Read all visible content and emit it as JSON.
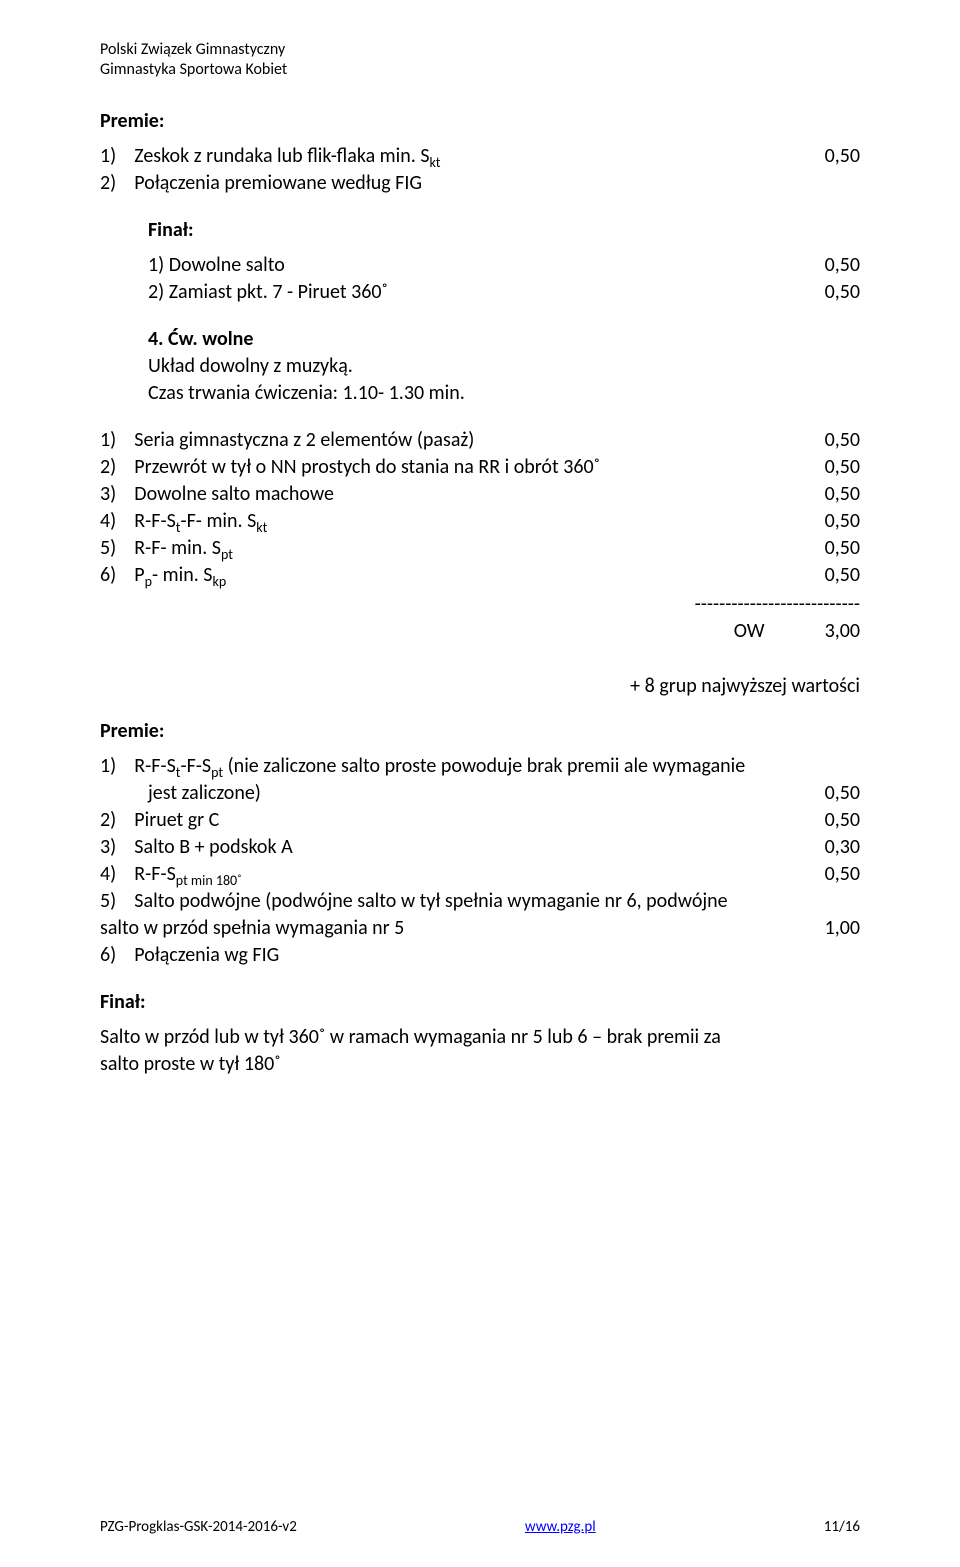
{
  "header": {
    "line1": "Polski Związek Gimnastyczny",
    "line2": "Gimnastyka Sportowa Kobiet"
  },
  "premie1": {
    "label": "Premie:",
    "items": [
      {
        "num": "1)",
        "text": "Zeskok z rundaka lub flik-flaka min. S",
        "sub": "kt",
        "val": "0,50"
      },
      {
        "num": "2)",
        "text": "Połączenia premiowane według FIG",
        "val": ""
      }
    ]
  },
  "final1": {
    "label": "Finał:",
    "items": [
      {
        "num": "1)",
        "text": "Dowolne salto",
        "val": "0,50"
      },
      {
        "num": "2)",
        "text": "Zamiast pkt. 7 - Piruet 360˚",
        "val": "0,50"
      }
    ]
  },
  "cw": {
    "num": "4.",
    "title": "Ćw. wolne",
    "line1": "Układ dowolny z muzyką.",
    "line2": "Czas trwania ćwiczenia: 1.10- 1.30 min."
  },
  "mainlist": {
    "items": [
      {
        "num": "1)",
        "text": "Seria gimnastyczna z 2 elementów (pasaż)",
        "val": "0,50"
      },
      {
        "num": "2)",
        "text": "Przewrót w tył o NN prostych do stania na RR i obrót 360˚",
        "val": "0,50"
      },
      {
        "num": "3)",
        "text": "Dowolne salto machowe",
        "val": "0,50"
      },
      {
        "num": "4)",
        "pre": "R-F-S",
        "sub1": "t",
        "mid": "-F- min. S",
        "sub2": "kt",
        "val": "0,50"
      },
      {
        "num": "5)",
        "pre": "R-F- min. S",
        "sub1": "pt",
        "val": "0,50"
      },
      {
        "num": "6)",
        "pre": "P",
        "sub1": "p",
        "mid": "- min. S",
        "sub2": "kp",
        "val": "0,50"
      }
    ],
    "dashes": "---------------------------",
    "ow_label": "OW",
    "ow_val": "3,00"
  },
  "plus_note": "+ 8 grup najwyższej wartości",
  "premie2": {
    "label": "Premie:",
    "items": [
      {
        "num": "1)",
        "pre": "R-F-S",
        "sub1": "t",
        "mid": "-F-S",
        "sub2": "pt",
        "tail": " (nie zaliczone salto proste powoduje brak premii ale wymaganie",
        "cont": "jest zaliczone)",
        "val": "0,50"
      },
      {
        "num": "2)",
        "text": "Piruet gr C",
        "val": "0,50"
      },
      {
        "num": "3)",
        "text": "Salto B + podskok A",
        "val": "0,30"
      },
      {
        "num": "4)",
        "pre": "R-F-S",
        "sub1": "pt min 180˚",
        "val": "0,50"
      },
      {
        "num": "5)",
        "text": "Salto podwójne (podwójne salto w tył spełnia wymaganie nr 6, podwójne",
        "val": ""
      }
    ],
    "cont_line": {
      "text": "salto w przód spełnia wymagania nr 5",
      "val": "1,00"
    },
    "last": {
      "num": "6)",
      "text": "Połączenia wg FIG"
    }
  },
  "final2": {
    "label": "Finał:",
    "line1": "Salto  w przód lub w tył 360˚ w ramach wymagania nr 5 lub 6 – brak premii za",
    "line2": "salto proste w tył 180˚"
  },
  "footer": {
    "left": "PZG-Progklas-GSK-2014-2016-v2",
    "center": "www.pzg.pl",
    "right": "11/16"
  }
}
